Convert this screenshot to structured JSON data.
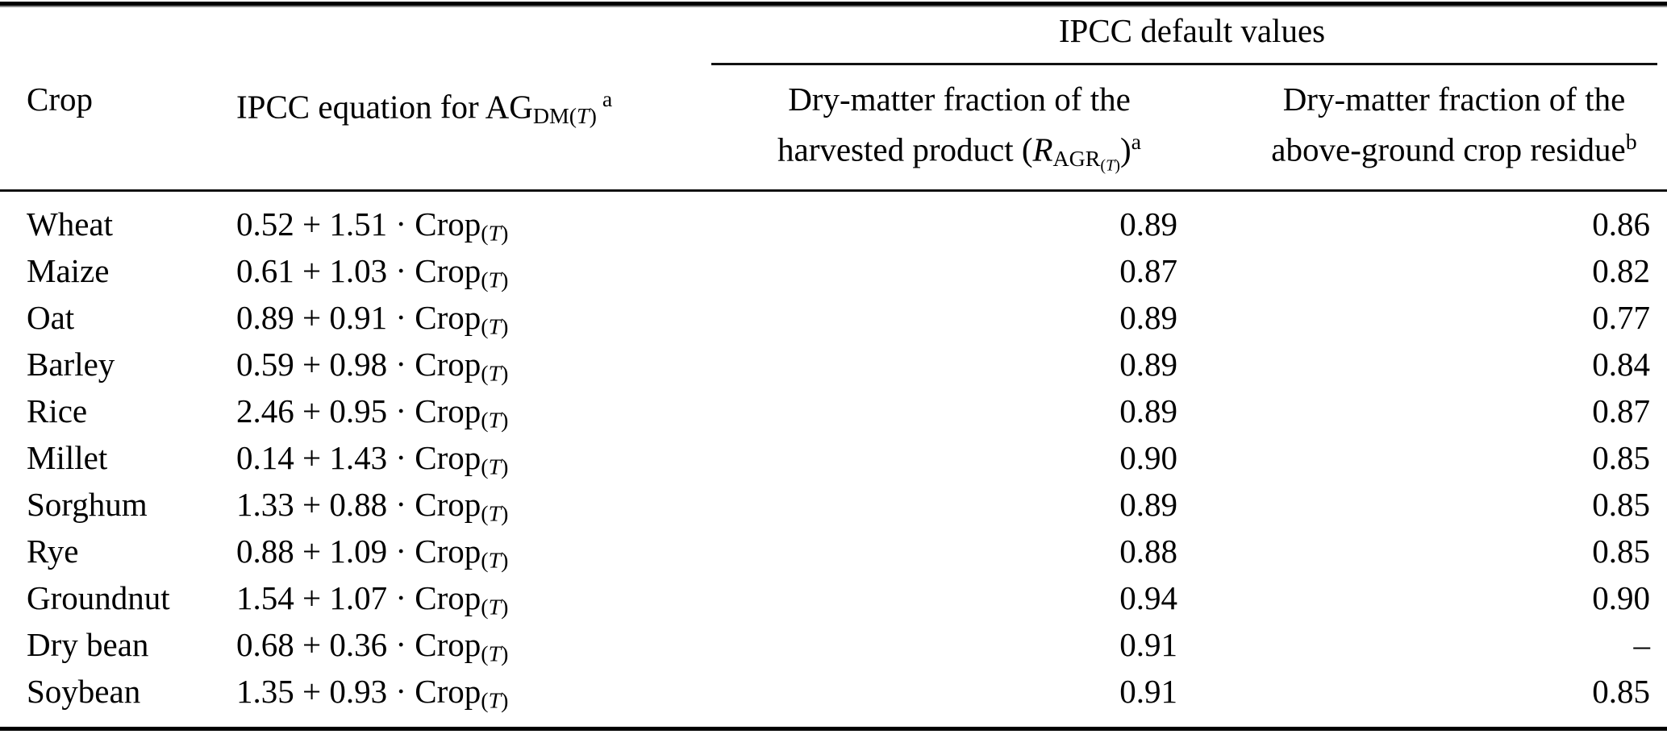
{
  "table": {
    "group_header": "IPCC default values",
    "headers": {
      "crop": "Crop",
      "equation": {
        "prefix": "IPCC equation for AG",
        "sub": "DM(T)",
        "sup": "a"
      },
      "col3": {
        "line1": "Dry-matter fraction of the",
        "line2_pre": "harvested product (",
        "sym": "R",
        "sym_sub": "AGR",
        "sym_subsub": "(T)",
        "close": ")",
        "sup": "a"
      },
      "col4": {
        "line1": "Dry-matter fraction of the",
        "line2": "above-ground crop residue",
        "sup": "b"
      }
    },
    "rows": [
      {
        "crop": "Wheat",
        "eq": "0.52 + 1.51 · Crop",
        "eq_sub": "(T)",
        "dm_harvested": "0.89",
        "dm_residue": "0.86"
      },
      {
        "crop": "Maize",
        "eq": "0.61 + 1.03 · Crop",
        "eq_sub": "(T)",
        "dm_harvested": "0.87",
        "dm_residue": "0.82"
      },
      {
        "crop": "Oat",
        "eq": "0.89 + 0.91 · Crop",
        "eq_sub": "(T)",
        "dm_harvested": "0.89",
        "dm_residue": "0.77"
      },
      {
        "crop": "Barley",
        "eq": "0.59 + 0.98 · Crop",
        "eq_sub": "(T)",
        "dm_harvested": "0.89",
        "dm_residue": "0.84"
      },
      {
        "crop": "Rice",
        "eq": "2.46 + 0.95 · Crop",
        "eq_sub": "(T)",
        "dm_harvested": "0.89",
        "dm_residue": "0.87"
      },
      {
        "crop": "Millet",
        "eq": "0.14 + 1.43 · Crop",
        "eq_sub": "(T)",
        "dm_harvested": "0.90",
        "dm_residue": "0.85"
      },
      {
        "crop": "Sorghum",
        "eq": "1.33 + 0.88 · Crop",
        "eq_sub": "(T)",
        "dm_harvested": "0.89",
        "dm_residue": "0.85"
      },
      {
        "crop": "Rye",
        "eq": "0.88 + 1.09 · Crop",
        "eq_sub": "(T)",
        "dm_harvested": "0.88",
        "dm_residue": "0.85"
      },
      {
        "crop": "Groundnut",
        "eq": "1.54 + 1.07 · Crop",
        "eq_sub": "(T)",
        "dm_harvested": "0.94",
        "dm_residue": "0.90"
      },
      {
        "crop": "Dry bean",
        "eq": "0.68 + 0.36 · Crop",
        "eq_sub": "(T)",
        "dm_harvested": "0.91",
        "dm_residue": "–"
      },
      {
        "crop": "Soybean",
        "eq": "1.35 + 0.93 · Crop",
        "eq_sub": "(T)",
        "dm_harvested": "0.91",
        "dm_residue": "0.85"
      }
    ]
  }
}
